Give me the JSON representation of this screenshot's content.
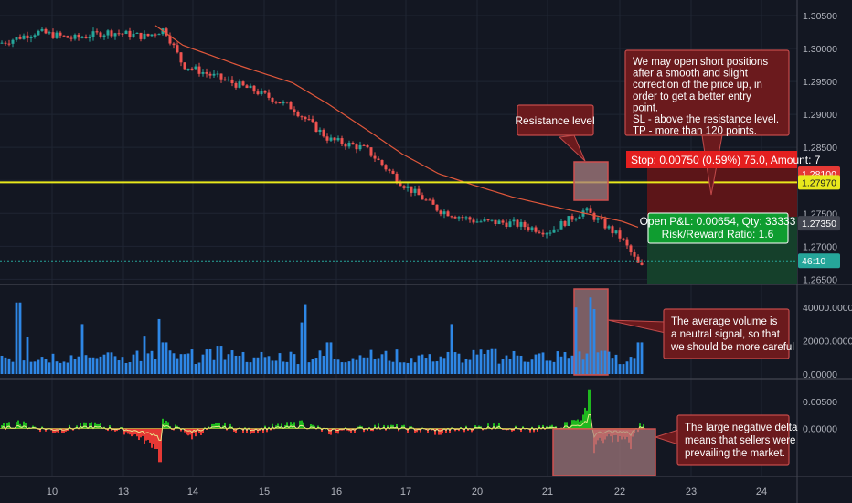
{
  "colors": {
    "background": "#131722",
    "grid": "#1f2533",
    "separator": "#434651",
    "axis_text": "#b2b5be",
    "candle_up": "#26a69a",
    "candle_down": "#ef5350",
    "ma": "#e0573b",
    "resistance": "#e8e81c",
    "stop_zone": "#5c1518",
    "target_zone": "#15402b",
    "volume": "#2e87e6",
    "annotation_fill": "#6b1a1d",
    "annotation_border": "#c24a4a",
    "highlight_fill": "#a87e80",
    "highlight_border": "#d05050",
    "delta_pos": "#1fb81f",
    "delta_neg": "#e53935",
    "delta_line": "#e8e88a"
  },
  "price_axis": {
    "ticks": [
      "1.30500",
      "1.30000",
      "1.29500",
      "1.29000",
      "1.28500",
      "1.28000",
      "1.27500",
      "1.27000",
      "1.26500"
    ],
    "ylim": [
      1.2645,
      1.3068
    ]
  },
  "price_tags": {
    "stop": {
      "label": "1.28100",
      "value": 1.281,
      "color": "#e53935"
    },
    "resistance": {
      "label": "1.27970",
      "value": 1.2797,
      "color": "#e8e81c"
    },
    "current": {
      "label": "1.27350",
      "value": 1.2735,
      "color": "#434651"
    },
    "countdown": {
      "label": "46:10",
      "value": 1.2678,
      "color": "#26a69a"
    }
  },
  "volume_axis": {
    "ticks": [
      "40000.00000",
      "20000.00000",
      "0.00000"
    ],
    "ylim": [
      0,
      50000
    ]
  },
  "delta_axis": {
    "ticks": [
      "0.00500",
      "0.00000"
    ],
    "ylim": [
      -0.0085,
      0.0085
    ]
  },
  "x_axis": {
    "ticks": [
      "10",
      "13",
      "14",
      "15",
      "16",
      "17",
      "20",
      "21",
      "22",
      "23",
      "24"
    ]
  },
  "annotations": {
    "resistance_note": "Resistance level",
    "strategy_note": "We may open short positions after a smooth and slight correction of the price up, in order to get a better entry point.\nSL - above the resistance level.\nTP - more than 120 points.",
    "volume_note": "The average volume is\na neutral signal, so that\nwe should be more careful",
    "delta_note": "The large negative delta\nmeans that sellers were\nprevailing the market."
  },
  "position": {
    "stop_label": "Stop: 0.00750 (0.59%) 75.0, Amount: 7",
    "pnl_label": "Open P&L: 0.00654, Qty: 33333",
    "rr_label": "Risk/Reward Ratio: 1.6"
  },
  "chart_data": [
    {
      "type": "line",
      "title": "",
      "series": [
        {
          "x": [
            0,
            40,
            80,
            120,
            160,
            180,
            200,
            240,
            280,
            320,
            360,
            400,
            440,
            480,
            520,
            560,
            600,
            640,
            680,
            700
          ],
          "values": [
            1.3008,
            1.3025,
            1.3015,
            1.3025,
            1.3018,
            1.303,
            1.2975,
            1.2955,
            1.2935,
            1.291,
            1.2862,
            1.2848,
            1.2795,
            1.2755,
            1.2738,
            1.2735,
            1.2722,
            1.2755,
            1.2712,
            1.2668
          ]
        },
        {
          "x": [
            170,
            200,
            260,
            320,
            360,
            400,
            440,
            480,
            520,
            560,
            600,
            640,
            680,
            700
          ],
          "values": [
            1.3035,
            1.3005,
            1.2975,
            1.2948,
            1.2915,
            1.2878,
            1.284,
            1.281,
            1.2792,
            1.2775,
            1.2762,
            1.275,
            1.2738,
            1.2728
          ]
        }
      ]
    },
    {
      "type": "bar",
      "title": "",
      "ylim": [
        0,
        50000
      ],
      "x": [
        0,
        20,
        30,
        50,
        90,
        100,
        120,
        150,
        158,
        175,
        180,
        200,
        240,
        260,
        280,
        300,
        330,
        334,
        360,
        400,
        440,
        470,
        494,
        510,
        540,
        570,
        600,
        630,
        645,
        650,
        660,
        680,
        700
      ],
      "values": [
        11000,
        43000,
        22000,
        9000,
        30000,
        10000,
        13000,
        14000,
        23000,
        33000,
        19000,
        12000,
        17000,
        11000,
        10000,
        8000,
        31000,
        42000,
        19000,
        10000,
        7000,
        12000,
        30000,
        9000,
        15000,
        11000,
        8000,
        40000,
        46000,
        39000,
        14000,
        6000,
        19000
      ]
    },
    {
      "type": "area",
      "title": "",
      "ylim": [
        -0.0085,
        0.0085
      ],
      "x": [
        0,
        20,
        60,
        100,
        140,
        175,
        178,
        210,
        240,
        270,
        330,
        360,
        420,
        480,
        540,
        580,
        620,
        640,
        645,
        650,
        670,
        690,
        700
      ],
      "values": [
        0.0003,
        0.0015,
        -0.0009,
        0.0012,
        -0.001,
        -0.0062,
        0.0018,
        -0.002,
        0.0011,
        -0.0009,
        0.0015,
        -0.0011,
        0.0006,
        -0.0012,
        0.0009,
        -0.0007,
        0.0012,
        0.0038,
        0.0072,
        -0.0045,
        -0.0025,
        -0.0038,
        0.0009
      ]
    }
  ]
}
